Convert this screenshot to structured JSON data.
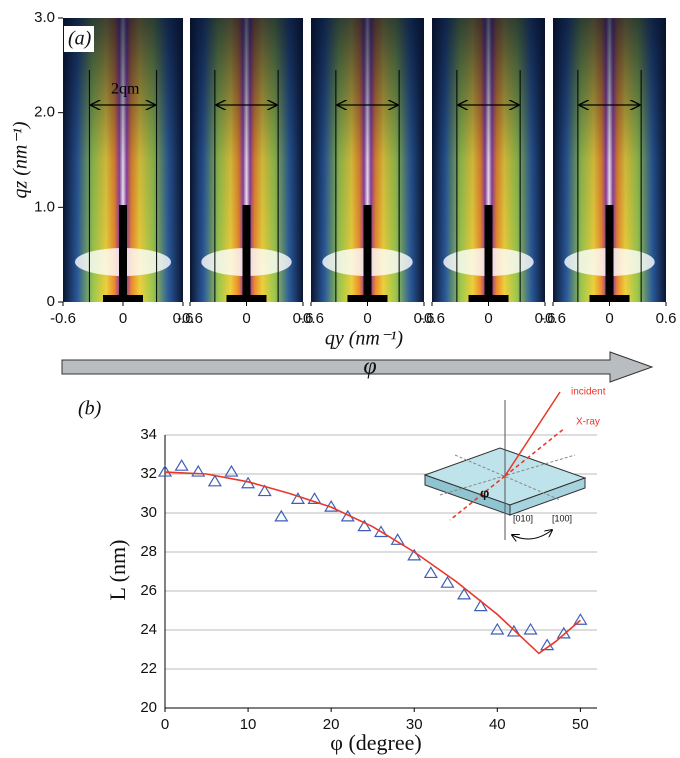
{
  "chart_data": [
    {
      "type": "image",
      "panel_label": "(a)",
      "width_label": "2qm",
      "ylabel": "qz (nm⁻¹)",
      "xlabel": "qy (nm⁻¹)",
      "arrow_label": "φ",
      "ylim": [
        0,
        3.0
      ],
      "yticks": [
        0,
        {
          "value": 1,
          "label": "1.0"
        },
        {
          "value": 2,
          "label": "2.0"
        },
        {
          "value": 3,
          "label": "3.0"
        }
      ],
      "xlim": [
        -0.6,
        0.6
      ],
      "panels": [
        {
          "xticks": [
            -0.6,
            0,
            0.6
          ]
        },
        {
          "xticks": [
            -0.6,
            0,
            0.6
          ]
        },
        {
          "xticks": [
            -0.6,
            0,
            0.6
          ]
        },
        {
          "xticks": [
            -0.6,
            0,
            0.6
          ]
        },
        {
          "xticks": [
            -0.6,
            0,
            0.6
          ]
        }
      ]
    },
    {
      "type": "scatter",
      "panel_label": "(b)",
      "xlabel": "φ (degree)",
      "ylabel": "L (nm)",
      "xlim": [
        0,
        52
      ],
      "ylim": [
        20,
        34
      ],
      "xticks": [
        0,
        10,
        20,
        30,
        40,
        50
      ],
      "yticks": [
        20,
        22,
        24,
        26,
        28,
        30,
        32,
        34
      ],
      "grid": true,
      "series": [
        {
          "type": "scatter",
          "color": "#3d5fb5",
          "x": [
            0,
            2,
            4,
            6,
            8,
            10,
            12,
            14,
            16,
            18,
            20,
            22,
            24,
            26,
            28,
            30,
            32,
            34,
            36,
            38,
            40,
            42,
            44,
            46,
            48,
            50
          ],
          "values": [
            32.1,
            32.4,
            32.1,
            31.6,
            32.1,
            31.5,
            31.1,
            29.8,
            30.7,
            30.7,
            30.3,
            29.8,
            29.3,
            29.0,
            28.6,
            27.8,
            26.9,
            26.4,
            25.8,
            25.2,
            24.0,
            23.9,
            24.0,
            23.2,
            23.8,
            24.5
          ]
        },
        {
          "type": "line",
          "color": "#e8372a",
          "x": [
            0,
            5,
            10,
            15,
            20,
            25,
            30,
            35,
            40,
            43,
            45,
            47,
            50
          ],
          "values": [
            32.1,
            32.0,
            31.6,
            31.0,
            30.3,
            29.3,
            28.0,
            26.5,
            24.8,
            23.6,
            22.8,
            23.4,
            24.5
          ]
        }
      ],
      "inset": {
        "incident": "incident",
        "xray": "X-ray",
        "angle": "φ",
        "dir1": "[010]",
        "dir2": "[100]"
      }
    }
  ]
}
